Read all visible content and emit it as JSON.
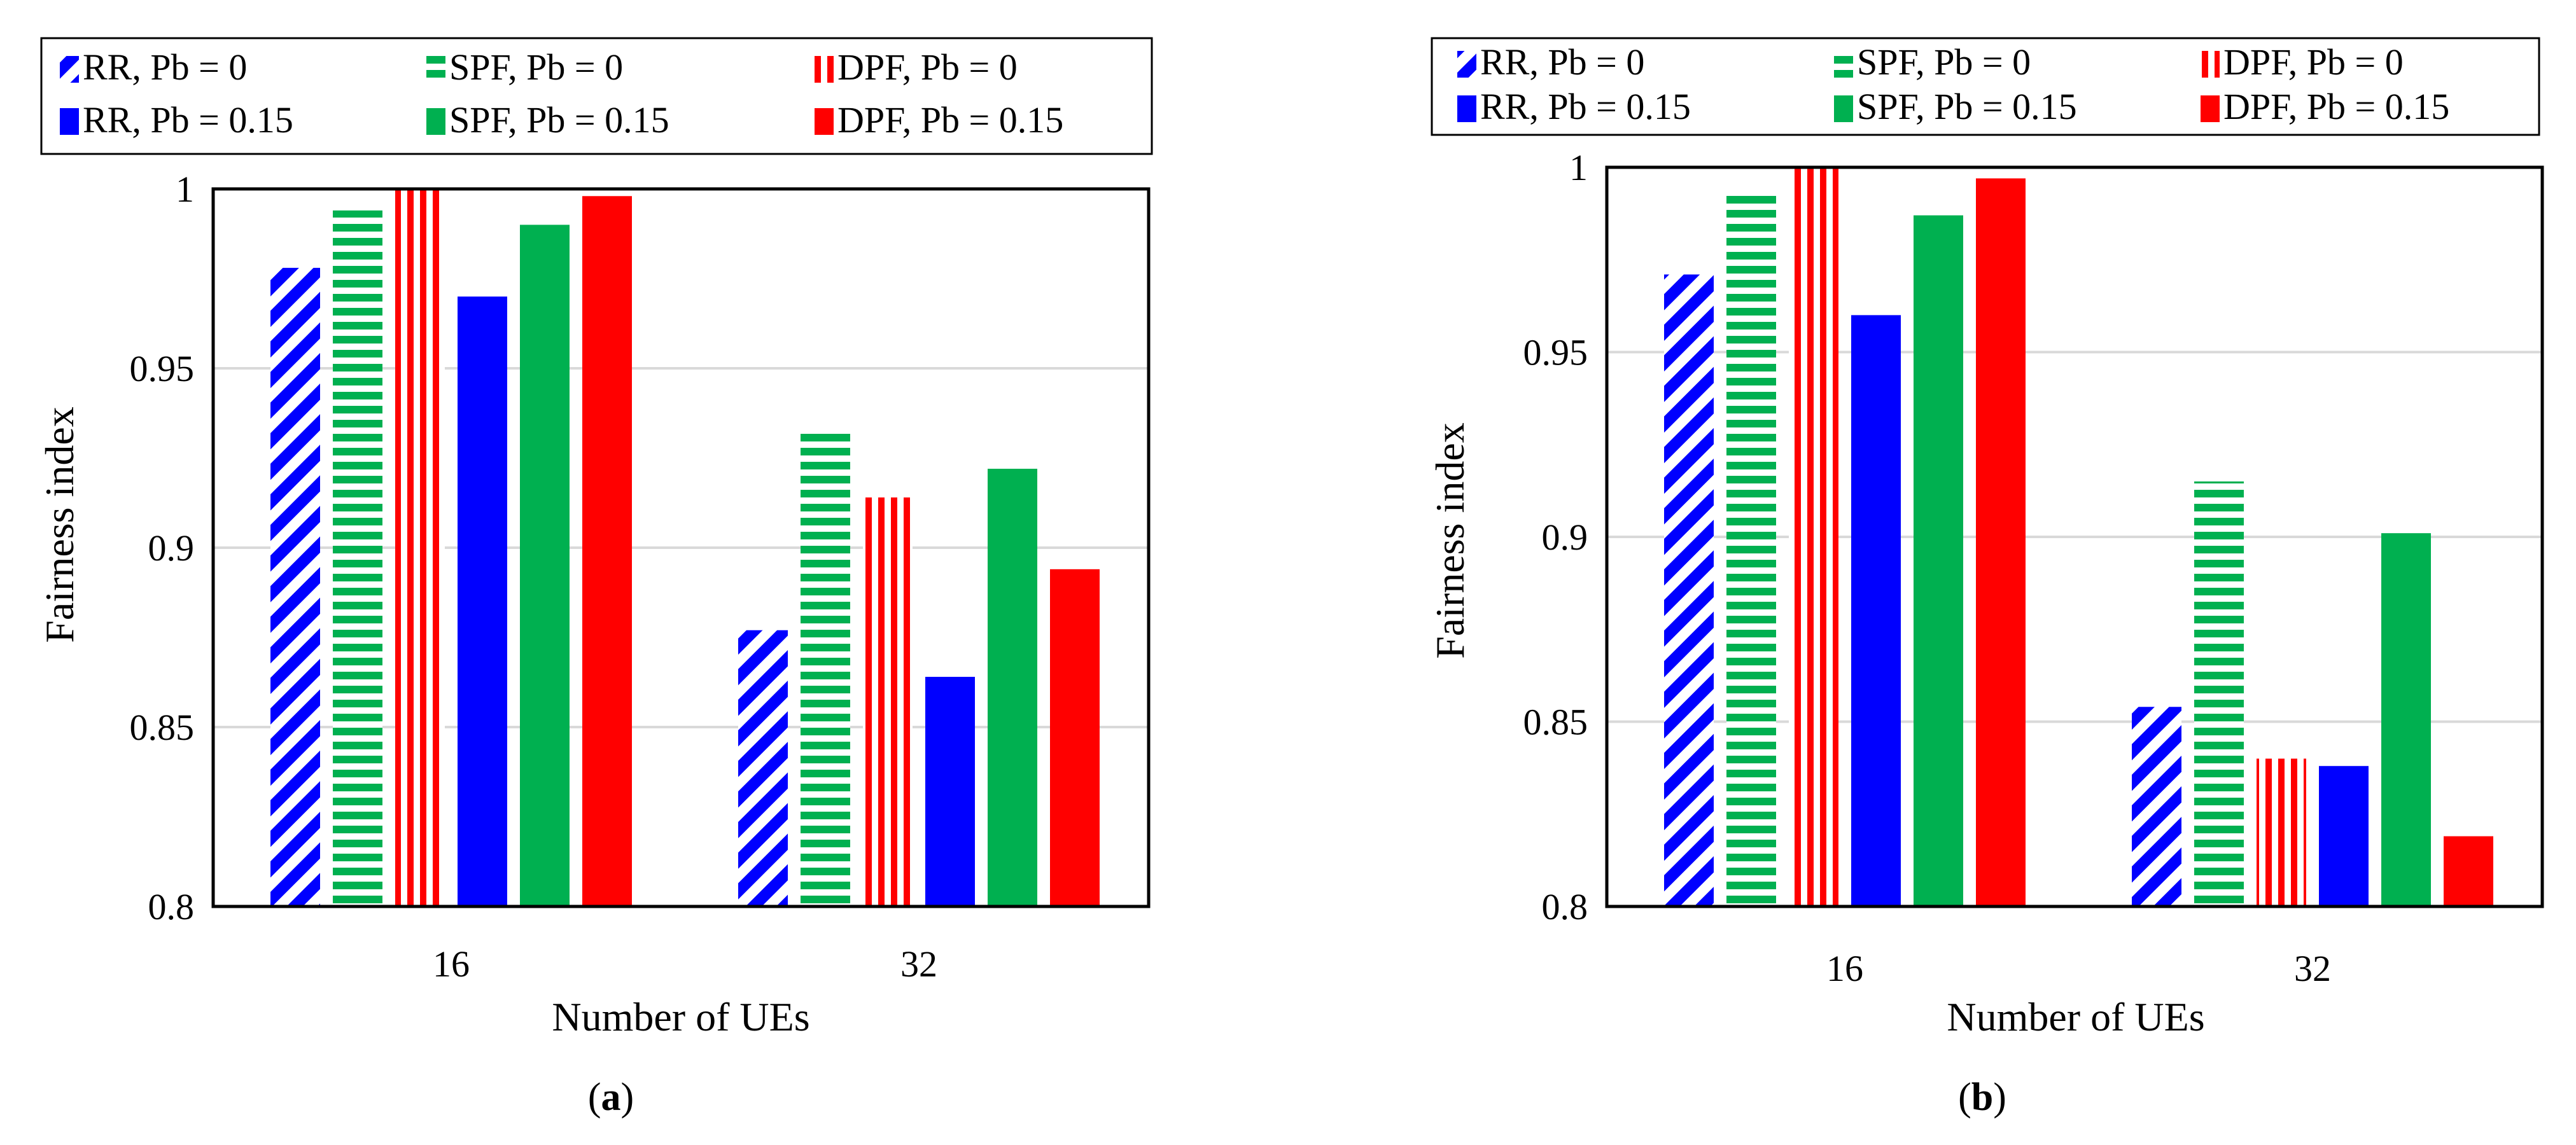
{
  "colors": {
    "rr": "#0000ff",
    "spf": "#00b050",
    "dpf": "#ff0000",
    "grid": "#d9d9d9",
    "axis": "#000000"
  },
  "legend": [
    {
      "key": "rr0",
      "label": "RR, Pb = 0"
    },
    {
      "key": "spf0",
      "label": "SPF, Pb = 0"
    },
    {
      "key": "dpf0",
      "label": "DPF, Pb = 0"
    },
    {
      "key": "rr15",
      "label": "RR, Pb = 0.15"
    },
    {
      "key": "spf15",
      "label": "SPF, Pb = 0.15"
    },
    {
      "key": "dpf15",
      "label": "DPF, Pb = 0.15"
    }
  ],
  "chart_data": [
    {
      "type": "bar",
      "panel_label": "a",
      "xlabel": "Number of UEs",
      "ylabel": "Fairness index",
      "ylim": [
        0.8,
        1
      ],
      "yticks": [
        "0.8",
        "0.85",
        "0.9",
        "0.95",
        "1"
      ],
      "grid": true,
      "legend_position": "top",
      "categories": [
        "16",
        "32"
      ],
      "series": [
        {
          "key": "rr0",
          "name": "RR, Pb = 0",
          "values": [
            0.978,
            0.877
          ]
        },
        {
          "key": "spf0",
          "name": "SPF, Pb = 0",
          "values": [
            0.994,
            0.933
          ]
        },
        {
          "key": "dpf0",
          "name": "DPF, Pb = 0",
          "values": [
            1.0,
            0.914
          ]
        },
        {
          "key": "rr15",
          "name": "RR, Pb = 0.15",
          "values": [
            0.97,
            0.864
          ]
        },
        {
          "key": "spf15",
          "name": "SPF, Pb = 0.15",
          "values": [
            0.99,
            0.922
          ]
        },
        {
          "key": "dpf15",
          "name": "DPF, Pb = 0.15",
          "values": [
            0.998,
            0.894
          ]
        }
      ]
    },
    {
      "type": "bar",
      "panel_label": "b",
      "xlabel": "Number of UEs",
      "ylabel": "Fairness index",
      "ylim": [
        0.8,
        1
      ],
      "yticks": [
        "0.8",
        "0.85",
        "0.9",
        "0.95",
        "1"
      ],
      "grid": true,
      "legend_position": "top",
      "categories": [
        "16",
        "32"
      ],
      "series": [
        {
          "key": "rr0",
          "name": "RR, Pb = 0",
          "values": [
            0.971,
            0.854
          ]
        },
        {
          "key": "spf0",
          "name": "SPF, Pb = 0",
          "values": [
            0.993,
            0.915
          ]
        },
        {
          "key": "dpf0",
          "name": "DPF, Pb = 0",
          "values": [
            1.0,
            0.84
          ]
        },
        {
          "key": "rr15",
          "name": "RR, Pb = 0.15",
          "values": [
            0.96,
            0.838
          ]
        },
        {
          "key": "spf15",
          "name": "SPF, Pb = 0.15",
          "values": [
            0.987,
            0.901
          ]
        },
        {
          "key": "dpf15",
          "name": "DPF, Pb = 0.15",
          "values": [
            0.997,
            0.819
          ]
        }
      ]
    }
  ]
}
